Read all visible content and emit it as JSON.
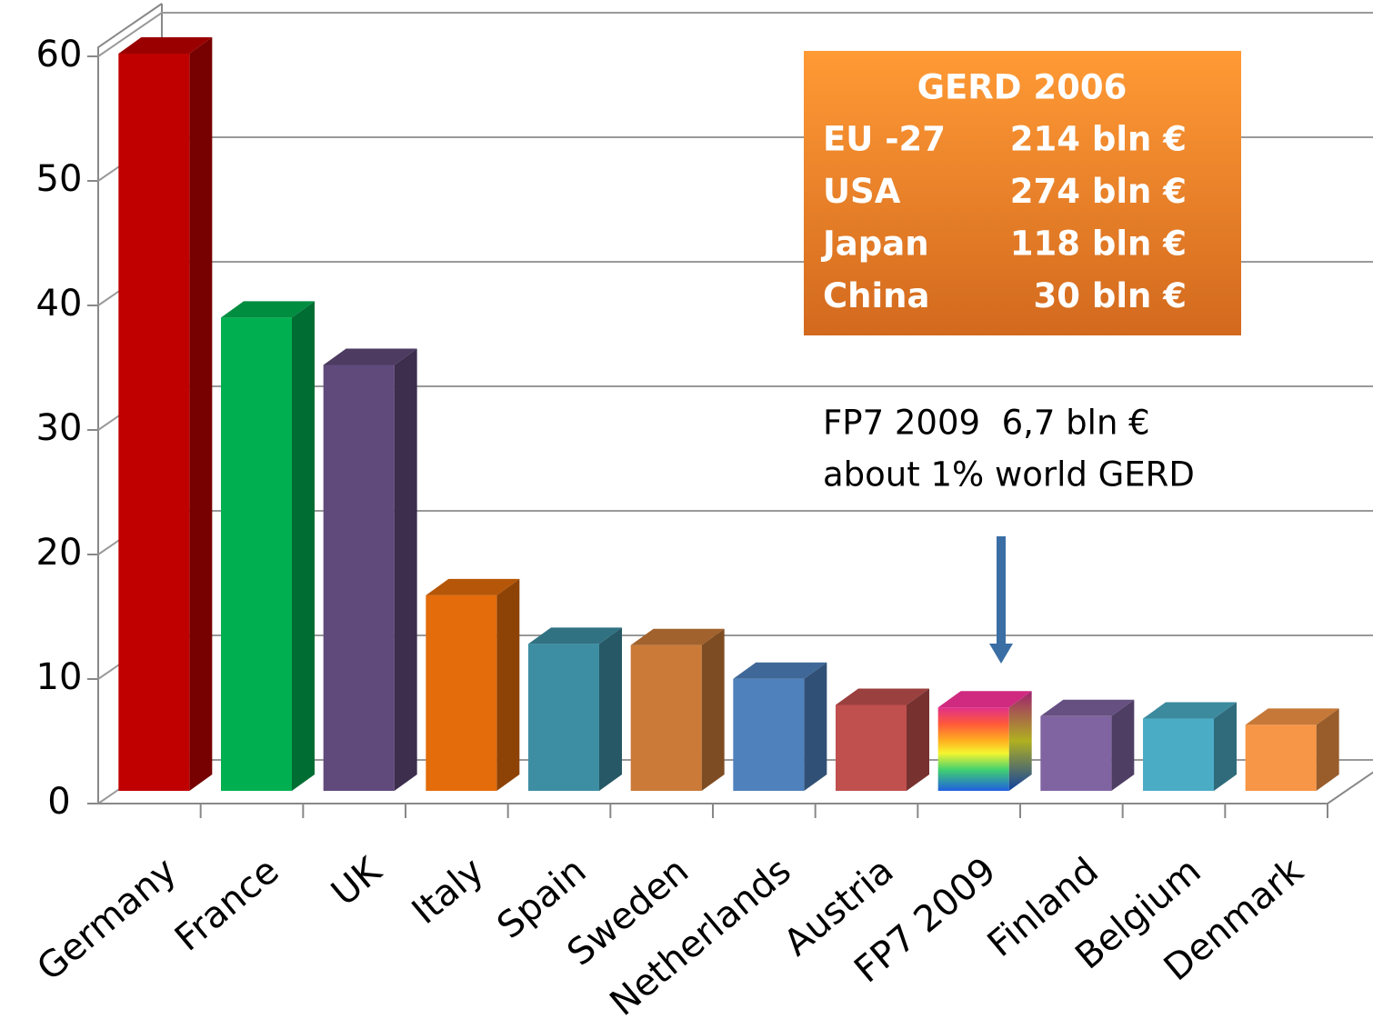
{
  "chart_data": {
    "type": "bar3d",
    "categories": [
      "Germany",
      "France",
      "UK",
      "Italy",
      "Spain",
      "Sweden",
      "Netherlands",
      "Austria",
      "FP7 2009",
      "Finland",
      "Belgium",
      "Denmark"
    ],
    "values": [
      59.2,
      38,
      34.2,
      15.7,
      11.8,
      11.7,
      9,
      6.9,
      6.7,
      6,
      5.8,
      5.3
    ],
    "colors": [
      "#c00000",
      "#00b050",
      "#604a7b",
      "#e46c0a",
      "#3d8ea3",
      "#cb7a38",
      "#4f81bd",
      "#c0504d",
      "rainbow",
      "#8064a2",
      "#4bacc6",
      "#f79646"
    ],
    "ylim": [
      0,
      60
    ],
    "yticks": [
      0,
      10,
      20,
      30,
      40,
      50,
      60
    ],
    "grid": true,
    "info_box": {
      "title": "GERD 2006",
      "rows": [
        {
          "label": "EU -27",
          "value": "214 bln €"
        },
        {
          "label": "USA",
          "value": "274 bln €"
        },
        {
          "label": "Japan",
          "value": "118 bln €"
        },
        {
          "label": "China",
          "value": "30 bln €"
        }
      ]
    },
    "annotations": [
      "FP7 2009  6,7 bln €",
      "about 1% world GERD"
    ]
  }
}
